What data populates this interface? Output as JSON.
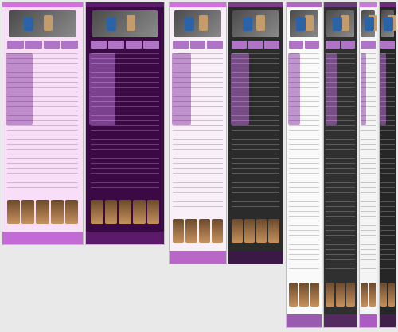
{
  "title": "",
  "panels": [
    {
      "name": "panel-light-1",
      "theme": "light",
      "bg": "#f8def7",
      "bar": "#d26ee0",
      "foot": "#c36bd5"
    },
    {
      "name": "panel-dark-1",
      "theme": "dark",
      "bg": "#3b0a45",
      "bar": "#5c1a6a",
      "foot": "#5c1a6a"
    },
    {
      "name": "panel-light-2",
      "theme": "light",
      "bg": "#f8eff8",
      "bar": "#d26ee0",
      "foot": "#b867c7"
    },
    {
      "name": "panel-dark-2",
      "theme": "dark",
      "bg": "#2b2b2b",
      "bar": "#7a3e86",
      "foot": "#3b1845"
    },
    {
      "name": "panel-light-3",
      "theme": "light",
      "bg": "#fafafa",
      "bar": "#b066c2",
      "foot": "#9a5ab0"
    },
    {
      "name": "panel-dark-3",
      "theme": "dark",
      "bg": "#303030",
      "bar": "#6a3c78",
      "foot": "#542b60"
    },
    {
      "name": "panel-light-4",
      "theme": "light",
      "bg": "#f4f4f4",
      "bar": "#c77bd7",
      "foot": "#aa5cc0"
    },
    {
      "name": "panel-dark-4",
      "theme": "dark",
      "bg": "#262626",
      "bar": "#6a2c77",
      "foot": "#40204a"
    }
  ],
  "footer_labels": [
    "",
    "",
    "",
    "",
    "",
    "",
    "",
    ""
  ]
}
